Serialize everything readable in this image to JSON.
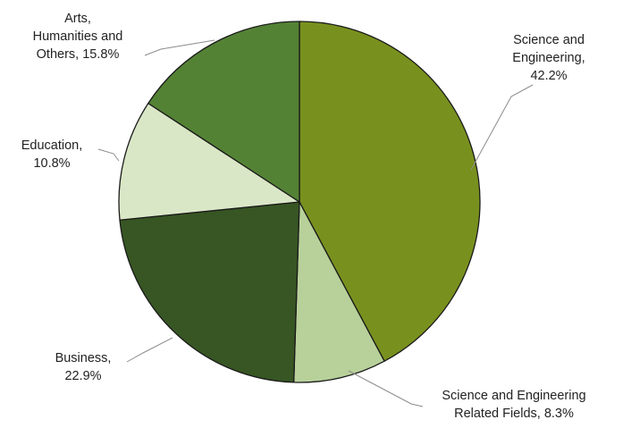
{
  "chart_data": {
    "type": "pie",
    "start_angle_deg": 0,
    "direction": "clockwise",
    "slices": [
      {
        "label": "Science and Engineering",
        "value": 42.2,
        "value_text": "42.2%",
        "label_lines": [
          "Science and",
          "Engineering,",
          "42.2%"
        ],
        "color": "#78911e"
      },
      {
        "label": "Science and Engineering Related Fields",
        "value": 8.3,
        "value_text": "8.3%",
        "label_lines": [
          "Science and Engineering",
          "Related Fields, 8.3%"
        ],
        "color": "#b8d19a"
      },
      {
        "label": "Business",
        "value": 22.9,
        "value_text": "22.9%",
        "label_lines": [
          "Business,",
          "22.9%"
        ],
        "color": "#375623"
      },
      {
        "label": "Education",
        "value": 10.8,
        "value_text": "10.8%",
        "label_lines": [
          "Education,",
          "10.8%"
        ],
        "color": "#dae7c6"
      },
      {
        "label": "Arts, Humanities and Others",
        "value": 15.8,
        "value_text": "15.8%",
        "label_lines": [
          "Arts,",
          "Humanities and",
          "Others, 15.8%"
        ],
        "color": "#548235"
      }
    ],
    "legend": "none",
    "data_labels": "outside with leader lines"
  }
}
